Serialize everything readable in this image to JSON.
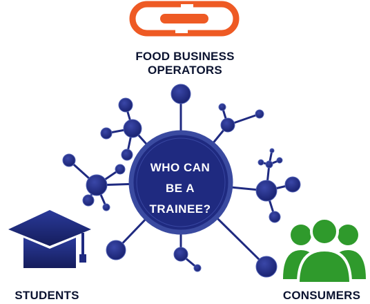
{
  "diagram": {
    "center_lines": [
      "WHO CAN",
      "BE A",
      "TRAINEE?"
    ],
    "labels": {
      "food_business_operators": [
        "FOOD BUSINESS",
        "OPERATORS"
      ],
      "students": "STUDENTS",
      "consumers": "CONSUMERS"
    },
    "icons": {
      "top": "chain-link-icon",
      "left": "graduation-cap-icon",
      "right": "people-group-icon"
    },
    "colors": {
      "node": "#1f2a80",
      "node_edge": "#3a4aa0",
      "chain": "#ee5a24",
      "cap": "#1f2a80",
      "people": "#2f9a2c",
      "text": "#0b1330",
      "center_text": "#ffffff"
    }
  }
}
